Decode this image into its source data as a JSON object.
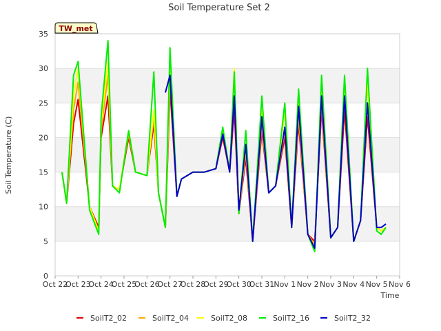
{
  "chart_data": {
    "type": "line",
    "title": "Soil Temperature Set 2",
    "xlabel": "Time",
    "ylabel": "Soil Temperature (C)",
    "station_label": "TW_met",
    "x_ticks": [
      "Oct 22",
      "Oct 23",
      "Oct 24",
      "Oct 25",
      "Oct 26",
      "Oct 27",
      "Oct 28",
      "Oct 29",
      "Oct 30",
      "Oct 31",
      "Nov 1",
      "Nov 2",
      "Nov 3",
      "Nov 4",
      "Nov 5",
      "Nov 6"
    ],
    "y_ticks": [
      0,
      5,
      10,
      15,
      20,
      25,
      30,
      35
    ],
    "xlim": [
      0,
      15
    ],
    "ylim": [
      0,
      35
    ],
    "grid": "horizontal bands",
    "legend_position": "bottom",
    "x_units": "days since Oct 22",
    "series": [
      {
        "name": "SoilT2_02",
        "color": "#e00000",
        "x": [
          0.3,
          0.5,
          0.8,
          1.0,
          1.5,
          1.9,
          2.0,
          2.3,
          2.5,
          2.8,
          3.2,
          3.5,
          4.0,
          4.3,
          4.5,
          4.8,
          5.0,
          5.3,
          5.5,
          6.0,
          6.5,
          7.0,
          7.3,
          7.6,
          7.8,
          8.0,
          8.3,
          8.6,
          9.0,
          9.3,
          9.6,
          10.0,
          10.3,
          10.6,
          11.0,
          11.3,
          11.6,
          12.0,
          12.3,
          12.6,
          13.0,
          13.3,
          13.6,
          14.0,
          14.2,
          14.4
        ],
        "values": [
          15.0,
          10.5,
          22.0,
          25.5,
          10.0,
          7.0,
          20.0,
          26.0,
          13.0,
          12.5,
          20.0,
          15.0,
          14.5,
          22.0,
          12.0,
          7.0,
          27.0,
          11.5,
          14.0,
          15.0,
          15.0,
          15.5,
          20.0,
          15.0,
          24.0,
          9.0,
          17.0,
          5.0,
          21.0,
          12.0,
          13.0,
          20.0,
          7.0,
          22.0,
          6.0,
          5.0,
          24.0,
          5.5,
          7.0,
          24.0,
          5.0,
          8.0,
          23.0,
          7.0,
          6.5,
          7.0
        ]
      },
      {
        "name": "SoilT2_04",
        "color": "#ffa500",
        "x": [
          0.3,
          0.5,
          0.8,
          1.0,
          1.5,
          1.9,
          2.0,
          2.3,
          2.5,
          2.8,
          3.2,
          3.5,
          4.0,
          4.3,
          4.5,
          4.8,
          5.0,
          5.3,
          5.5,
          6.0,
          6.5,
          7.0,
          7.3,
          7.6,
          7.8,
          8.0,
          8.3,
          8.6,
          9.0,
          9.3,
          9.6,
          10.0,
          10.3,
          10.6,
          11.0,
          11.3,
          11.6,
          12.0,
          12.3,
          12.6,
          13.0,
          13.3,
          13.6,
          14.0,
          14.2,
          14.4
        ],
        "values": [
          15.0,
          10.5,
          24.0,
          28.0,
          10.0,
          6.5,
          21.0,
          29.0,
          13.0,
          12.5,
          20.5,
          15.0,
          14.5,
          23.0,
          12.0,
          7.0,
          29.0,
          11.5,
          14.0,
          15.0,
          15.0,
          15.5,
          20.5,
          15.0,
          26.0,
          9.0,
          18.0,
          5.0,
          22.0,
          12.0,
          13.0,
          21.0,
          7.0,
          23.0,
          6.0,
          4.5,
          25.0,
          5.5,
          7.0,
          26.0,
          5.0,
          8.0,
          25.0,
          7.0,
          6.5,
          7.0
        ]
      },
      {
        "name": "SoilT2_08",
        "color": "#ffff00",
        "x": [
          0.3,
          0.5,
          0.8,
          1.0,
          1.5,
          1.9,
          2.0,
          2.3,
          2.5,
          2.8,
          3.2,
          3.5,
          4.0,
          4.3,
          4.5,
          4.8,
          5.0,
          5.3,
          5.5,
          6.0,
          6.5,
          7.0,
          7.3,
          7.6,
          7.8,
          8.0,
          8.3,
          8.6,
          9.0,
          9.3,
          9.6,
          10.0,
          10.3,
          10.6,
          11.0,
          11.3,
          11.6,
          12.0,
          12.3,
          12.6,
          13.0,
          13.3,
          13.6,
          14.0,
          14.2,
          14.4
        ],
        "values": [
          15.0,
          10.5,
          26.0,
          30.0,
          10.0,
          6.5,
          22.0,
          31.0,
          13.0,
          12.5,
          21.0,
          15.0,
          14.5,
          24.0,
          12.0,
          7.0,
          31.0,
          11.5,
          14.0,
          15.0,
          15.0,
          15.5,
          21.0,
          15.0,
          30.0,
          9.0,
          19.0,
          5.0,
          24.0,
          12.0,
          13.0,
          24.0,
          7.0,
          25.0,
          6.0,
          4.0,
          27.0,
          5.5,
          7.0,
          28.0,
          5.0,
          8.0,
          28.0,
          7.0,
          6.5,
          7.0
        ]
      },
      {
        "name": "SoilT2_16",
        "color": "#00ee00",
        "x": [
          0.3,
          0.5,
          0.8,
          1.0,
          1.5,
          1.9,
          2.0,
          2.3,
          2.5,
          2.8,
          3.2,
          3.5,
          4.0,
          4.3,
          4.5,
          4.8,
          5.0,
          5.3,
          5.5,
          6.0,
          6.5,
          7.0,
          7.3,
          7.6,
          7.8,
          8.0,
          8.3,
          8.6,
          9.0,
          9.3,
          9.6,
          10.0,
          10.3,
          10.6,
          11.0,
          11.3,
          11.6,
          12.0,
          12.3,
          12.6,
          13.0,
          13.3,
          13.6,
          14.0,
          14.2,
          14.4
        ],
        "values": [
          15.0,
          10.5,
          29.0,
          31.0,
          9.5,
          6.0,
          23.0,
          34.0,
          13.0,
          12.0,
          21.0,
          15.0,
          14.5,
          29.5,
          12.0,
          7.0,
          33.0,
          11.5,
          14.0,
          15.0,
          15.0,
          15.5,
          21.5,
          15.0,
          29.5,
          9.0,
          21.0,
          5.0,
          26.0,
          12.0,
          13.0,
          25.0,
          7.0,
          27.0,
          6.0,
          3.5,
          29.0,
          5.5,
          7.0,
          29.0,
          5.0,
          8.0,
          30.0,
          6.5,
          6.0,
          7.0
        ]
      },
      {
        "name": "SoilT2_32",
        "color": "#0000cc",
        "x": [
          4.8,
          5.0,
          5.3,
          5.5,
          6.0,
          6.5,
          7.0,
          7.3,
          7.6,
          7.8,
          8.0,
          8.3,
          8.6,
          9.0,
          9.3,
          9.6,
          10.0,
          10.3,
          10.6,
          11.0,
          11.3,
          11.6,
          12.0,
          12.3,
          12.6,
          13.0,
          13.3,
          13.6,
          14.0,
          14.2,
          14.4
        ],
        "values": [
          26.5,
          29.0,
          11.5,
          14.0,
          15.0,
          15.0,
          15.5,
          20.5,
          15.0,
          26.0,
          9.5,
          19.0,
          5.0,
          23.0,
          12.0,
          13.0,
          21.5,
          7.0,
          24.5,
          6.0,
          4.0,
          26.0,
          5.5,
          7.0,
          26.0,
          5.0,
          8.0,
          25.0,
          7.0,
          7.0,
          7.5
        ]
      }
    ]
  }
}
